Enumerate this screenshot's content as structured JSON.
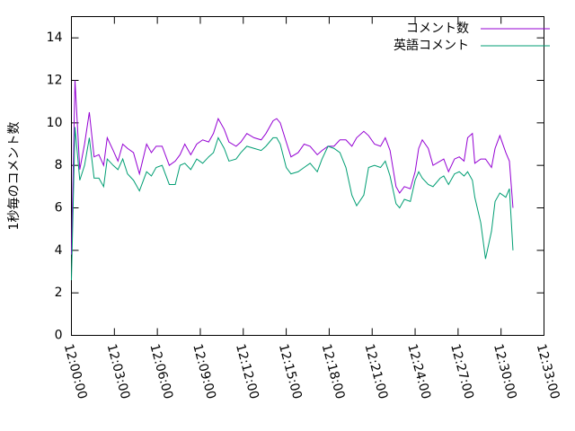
{
  "chart_data": {
    "type": "line",
    "ylabel": "1秒毎のコメント数",
    "x": [
      "12:00:00",
      "12:00:15",
      "12:00:35",
      "12:00:55",
      "12:01:15",
      "12:01:35",
      "12:01:55",
      "12:02:15",
      "12:02:30",
      "12:02:55",
      "12:03:15",
      "12:03:35",
      "12:03:55",
      "12:04:20",
      "12:04:45",
      "12:05:15",
      "12:05:35",
      "12:05:55",
      "12:06:20",
      "12:06:50",
      "12:07:15",
      "12:07:35",
      "12:07:55",
      "12:08:20",
      "12:08:45",
      "12:09:10",
      "12:09:35",
      "12:09:55",
      "12:10:15",
      "12:10:40",
      "12:11:00",
      "12:11:30",
      "12:11:50",
      "12:12:15",
      "12:12:45",
      "12:13:15",
      "12:13:35",
      "12:14:05",
      "12:14:20",
      "12:14:35",
      "12:15:00",
      "12:15:20",
      "12:15:50",
      "12:16:15",
      "12:16:40",
      "12:17:10",
      "12:17:30",
      "12:17:55",
      "12:18:20",
      "12:18:45",
      "12:19:10",
      "12:19:35",
      "12:19:55",
      "12:20:25",
      "12:20:45",
      "12:21:10",
      "12:21:35",
      "12:21:55",
      "12:22:15",
      "12:22:40",
      "12:22:55",
      "12:23:15",
      "12:23:40",
      "12:24:00",
      "12:24:15",
      "12:24:30",
      "12:24:55",
      "12:25:15",
      "12:25:45",
      "12:26:00",
      "12:26:20",
      "12:26:45",
      "12:27:05",
      "12:27:25",
      "12:27:40",
      "12:28:00",
      "12:28:10",
      "12:28:35",
      "12:28:55",
      "12:29:20",
      "12:29:35",
      "12:29:55",
      "12:30:20",
      "12:30:35",
      "12:30:50"
    ],
    "series": [
      {
        "name": "コメント数",
        "color": "#9400d3",
        "values": [
          3.8,
          12,
          7.8,
          9.0,
          10.5,
          8.4,
          8.5,
          8.0,
          9.3,
          8.7,
          8.2,
          9.0,
          8.8,
          8.6,
          7.6,
          9.0,
          8.6,
          8.9,
          8.9,
          8.0,
          8.2,
          8.5,
          9.0,
          8.5,
          9.0,
          9.2,
          9.1,
          9.5,
          10.2,
          9.7,
          9.1,
          8.9,
          9.1,
          9.5,
          9.3,
          9.2,
          9.5,
          10.1,
          10.2,
          10.0,
          9.1,
          8.4,
          8.6,
          9.0,
          8.9,
          8.5,
          8.7,
          8.9,
          8.9,
          9.2,
          9.2,
          8.9,
          9.3,
          9.6,
          9.4,
          9.0,
          8.9,
          9.3,
          8.7,
          7.0,
          6.7,
          7.0,
          6.9,
          7.7,
          8.8,
          9.2,
          8.8,
          8.0,
          8.2,
          8.3,
          7.7,
          8.3,
          8.4,
          8.2,
          9.3,
          9.5,
          8.1,
          8.3,
          8.3,
          7.9,
          8.8,
          9.4,
          8.6,
          8.2,
          6.0
        ]
      },
      {
        "name": "英語コメント",
        "color": "#009e73",
        "values": [
          2.6,
          9.8,
          7.3,
          8.0,
          9.3,
          7.4,
          7.4,
          7.0,
          8.3,
          8.0,
          7.8,
          8.3,
          7.6,
          7.3,
          6.8,
          7.7,
          7.5,
          7.9,
          8.0,
          7.1,
          7.1,
          8.0,
          8.1,
          7.8,
          8.3,
          8.1,
          8.4,
          8.6,
          9.3,
          8.8,
          8.2,
          8.3,
          8.6,
          8.9,
          8.8,
          8.7,
          8.9,
          9.3,
          9.3,
          9.0,
          7.9,
          7.6,
          7.7,
          7.9,
          8.1,
          7.7,
          8.3,
          8.9,
          8.8,
          8.6,
          7.9,
          6.6,
          6.1,
          6.6,
          7.9,
          8.0,
          7.9,
          8.2,
          7.5,
          6.2,
          6.0,
          6.4,
          6.3,
          7.3,
          7.7,
          7.4,
          7.1,
          7.0,
          7.4,
          7.5,
          7.1,
          7.6,
          7.7,
          7.5,
          7.7,
          7.3,
          6.5,
          5.3,
          3.6,
          4.9,
          6.3,
          6.7,
          6.5,
          6.9,
          4.0
        ]
      }
    ],
    "xlim": [
      "12:00:00",
      "12:33:00"
    ],
    "xticks": [
      "12:00:00",
      "12:03:00",
      "12:06:00",
      "12:09:00",
      "12:12:00",
      "12:15:00",
      "12:18:00",
      "12:21:00",
      "12:24:00",
      "12:27:00",
      "12:30:00",
      "12:33:00"
    ],
    "ylim": [
      0,
      15
    ],
    "yticks": [
      0,
      2,
      4,
      6,
      8,
      10,
      12,
      14
    ],
    "legend": "top-right"
  }
}
